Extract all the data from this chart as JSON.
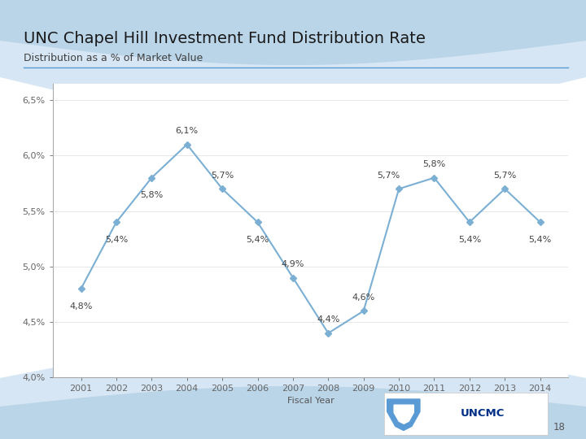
{
  "title": "UNC Chapel Hill Investment Fund Distribution Rate",
  "subtitle": "Distribution as a % of Market Value",
  "xlabel": "Fiscal Year",
  "years": [
    2001,
    2002,
    2003,
    2004,
    2005,
    2006,
    2007,
    2008,
    2009,
    2010,
    2011,
    2012,
    2013,
    2014
  ],
  "values": [
    4.8,
    5.4,
    5.8,
    6.1,
    5.7,
    5.4,
    4.9,
    4.4,
    4.6,
    5.7,
    5.8,
    5.4,
    5.7,
    5.4
  ],
  "labels": [
    "4,8%",
    "5,4%",
    "5,8%",
    "6,1%",
    "5,7%",
    "5,4%",
    "4,9%",
    "4,4%",
    "4,6%",
    "5,7%",
    "5,8%",
    "5,4%",
    "5,7%",
    "5,4%"
  ],
  "label_offsets_x": [
    0,
    0,
    0,
    0,
    0,
    0,
    0,
    0,
    0,
    -0.3,
    0,
    0,
    0,
    0
  ],
  "label_offsets_y": [
    -0.16,
    -0.16,
    -0.16,
    0.12,
    0.12,
    -0.16,
    0.12,
    0.12,
    0.12,
    0.12,
    0.12,
    -0.16,
    0.12,
    -0.16
  ],
  "line_color": "#7BAFD4",
  "ytick_labels": [
    "4,0%",
    "4,5%",
    "5,0%",
    "5,5%",
    "6,0%",
    "6,5%"
  ],
  "ytick_values": [
    4.0,
    4.5,
    5.0,
    5.5,
    6.0,
    6.5
  ],
  "ylim_min": 4.0,
  "ylim_max": 6.65,
  "bg_top_color1": "#A8C8E0",
  "bg_top_color2": "#C8DDF0",
  "bg_white": "#FFFFFF",
  "bg_bottom_color1": "#A8C8E0",
  "bg_bottom_color2": "#C8DDF0",
  "divider_color": "#5B9BD5",
  "title_fontsize": 14,
  "subtitle_fontsize": 9,
  "label_fontsize": 8,
  "axis_fontsize": 8,
  "page_number": "18"
}
